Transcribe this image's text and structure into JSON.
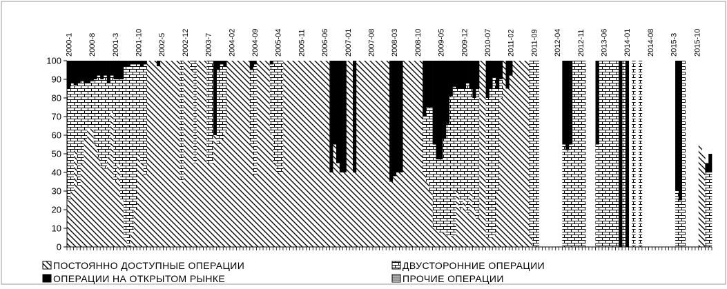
{
  "chart_data": {
    "type": "area",
    "stacked": true,
    "percent_stacked": true,
    "ylim": [
      0,
      100
    ],
    "yticks": [
      0,
      10,
      20,
      30,
      40,
      50,
      60,
      70,
      80,
      90,
      100
    ],
    "grid": false,
    "legend_position": "bottom",
    "x_labels": [
      "2000-1",
      "2000-8",
      "2001-3",
      "2001-10",
      "2002-5",
      "2002-12",
      "2003-7",
      "2004-02",
      "2004-09",
      "2005-04",
      "2005-11",
      "2006-06",
      "2007-01",
      "2007-08",
      "2008-03",
      "2008-10",
      "2009-05",
      "2009-12",
      "2010-07",
      "2011-02",
      "2011-09",
      "2012-04",
      "2012-11",
      "2013-06",
      "2014-01",
      "2014-08",
      "2015-3",
      "2015-10"
    ],
    "x_label_months": [
      0,
      7,
      14,
      21,
      28,
      35,
      42,
      49,
      56,
      63,
      70,
      77,
      84,
      91,
      98,
      105,
      112,
      119,
      126,
      133,
      140,
      147,
      154,
      161,
      168,
      175,
      182,
      189
    ],
    "months_total": 194,
    "series": [
      {
        "name": "ПОСТОЯННО ДОСТУПНЫЕ ОПЕРАЦИИ",
        "pattern": "diagonal",
        "values": [
          25,
          30,
          52,
          33,
          45,
          58,
          63,
          64,
          55,
          48,
          43,
          42,
          48,
          72,
          35,
          45,
          25,
          5,
          0,
          8,
          20,
          50,
          45,
          38,
          100,
          100,
          100,
          97,
          100,
          100,
          100,
          100,
          100,
          100,
          35,
          100,
          100,
          95,
          45,
          100,
          100,
          100,
          45,
          45,
          60,
          55,
          58,
          62,
          100,
          100,
          100,
          100,
          100,
          100,
          100,
          55,
          38,
          100,
          100,
          100,
          100,
          60,
          45,
          40,
          40,
          100,
          100,
          100,
          100,
          100,
          100,
          100,
          100,
          100,
          100,
          100,
          100,
          100,
          100,
          40,
          55,
          45,
          40,
          40,
          100,
          100,
          40,
          100,
          100,
          100,
          100,
          100,
          100,
          100,
          100,
          100,
          100,
          35,
          38,
          40,
          40,
          100,
          100,
          100,
          100,
          100,
          100,
          40,
          35,
          30,
          10,
          9,
          7,
          8,
          6,
          6,
          6,
          30,
          20,
          25,
          18,
          30,
          20,
          15,
          100,
          100,
          5,
          5,
          6,
          30,
          80,
          100,
          85,
          92,
          100,
          100,
          100,
          100,
          100,
          5,
          0,
          0,
          0,
          0,
          0,
          0,
          0,
          0,
          0,
          0,
          0,
          0,
          0,
          0,
          0,
          0,
          0,
          0,
          0,
          0,
          0,
          0,
          0,
          0,
          0,
          0,
          0,
          0,
          0,
          0,
          0,
          0,
          0,
          0,
          0,
          0,
          0,
          0,
          0,
          0,
          0,
          0,
          0,
          0,
          0,
          0,
          0,
          0,
          0,
          0,
          55,
          50,
          0
        ]
      },
      {
        "name": "ДВУСТОРОННИЕ ОПЕРАЦИИ",
        "pattern": "brick",
        "values": [
          60,
          58,
          35,
          55,
          44,
          30,
          25,
          25,
          35,
          44,
          47,
          50,
          40,
          20,
          55,
          45,
          65,
          92,
          97,
          90,
          78,
          48,
          52,
          60,
          0,
          0,
          0,
          0,
          0,
          0,
          0,
          0,
          0,
          0,
          65,
          0,
          0,
          5,
          55,
          0,
          0,
          0,
          55,
          55,
          0,
          40,
          40,
          35,
          0,
          0,
          0,
          0,
          0,
          0,
          0,
          40,
          60,
          0,
          0,
          0,
          0,
          38,
          55,
          60,
          60,
          0,
          0,
          0,
          0,
          0,
          0,
          0,
          0,
          0,
          0,
          0,
          0,
          0,
          0,
          0,
          0,
          0,
          0,
          0,
          0,
          0,
          0,
          0,
          0,
          0,
          0,
          0,
          0,
          0,
          0,
          0,
          0,
          0,
          0,
          0,
          0,
          0,
          0,
          0,
          0,
          0,
          0,
          30,
          40,
          45,
          45,
          38,
          40,
          50,
          60,
          75,
          80,
          55,
          65,
          60,
          70,
          55,
          60,
          70,
          0,
          0,
          75,
          80,
          85,
          55,
          10,
          0,
          0,
          0,
          0,
          0,
          0,
          0,
          0,
          95,
          100,
          100,
          0,
          0,
          0,
          0,
          0,
          0,
          0,
          55,
          52,
          55,
          100,
          100,
          100,
          100,
          0,
          0,
          0,
          55,
          100,
          100,
          100,
          100,
          100,
          100,
          0,
          100,
          0,
          0,
          100,
          0,
          100,
          0,
          0,
          0,
          0,
          0,
          0,
          0,
          0,
          0,
          0,
          30,
          25,
          100,
          0,
          0,
          0,
          0,
          0,
          0,
          40,
          40,
          100
        ]
      },
      {
        "name": "ОПЕРАЦИИ НА ОТКРЫТОМ РЫНКЕ",
        "pattern": "solid",
        "values": [
          15,
          12,
          13,
          12,
          11,
          12,
          12,
          11,
          10,
          8,
          10,
          8,
          12,
          8,
          10,
          10,
          10,
          3,
          3,
          2,
          2,
          2,
          3,
          2,
          0,
          0,
          0,
          3,
          0,
          0,
          0,
          0,
          0,
          0,
          0,
          0,
          0,
          0,
          0,
          0,
          0,
          0,
          0,
          0,
          40,
          5,
          2,
          3,
          0,
          0,
          0,
          0,
          0,
          0,
          0,
          5,
          2,
          0,
          0,
          0,
          0,
          2,
          0,
          0,
          0,
          0,
          0,
          0,
          0,
          0,
          0,
          0,
          0,
          0,
          0,
          0,
          0,
          0,
          0,
          60,
          45,
          55,
          60,
          60,
          0,
          0,
          60,
          0,
          0,
          0,
          0,
          0,
          0,
          0,
          0,
          0,
          0,
          65,
          62,
          60,
          60,
          0,
          0,
          0,
          0,
          0,
          0,
          30,
          25,
          25,
          45,
          53,
          53,
          42,
          34,
          19,
          14,
          15,
          15,
          15,
          12,
          15,
          20,
          15,
          0,
          0,
          20,
          15,
          9,
          15,
          10,
          0,
          15,
          8,
          0,
          0,
          0,
          0,
          0,
          0,
          0,
          0,
          0,
          0,
          0,
          0,
          0,
          0,
          0,
          45,
          48,
          45,
          0,
          0,
          0,
          0,
          0,
          0,
          0,
          45,
          0,
          0,
          0,
          0,
          0,
          0,
          100,
          0,
          100,
          0,
          0,
          0,
          0,
          0,
          0,
          0,
          0,
          0,
          0,
          0,
          0,
          0,
          0,
          70,
          75,
          0,
          0,
          0,
          0,
          0,
          0,
          0,
          5,
          10,
          0
        ]
      },
      {
        "name": "ПРОЧИЕ ОПЕРАЦИИ",
        "pattern": "horizontal",
        "values": [
          0,
          0,
          0,
          0,
          0,
          0,
          0,
          0,
          0,
          0,
          0,
          0,
          0,
          0,
          0,
          0,
          0,
          0,
          0,
          0,
          0,
          0,
          0,
          0,
          0,
          0,
          0,
          0,
          0,
          0,
          0,
          0,
          0,
          0,
          0,
          0,
          0,
          0,
          0,
          0,
          0,
          0,
          0,
          0,
          0,
          0,
          0,
          0,
          0,
          0,
          0,
          0,
          0,
          0,
          0,
          0,
          0,
          0,
          0,
          0,
          0,
          0,
          0,
          0,
          0,
          0,
          0,
          0,
          0,
          0,
          0,
          0,
          0,
          0,
          0,
          0,
          0,
          0,
          0,
          0,
          0,
          0,
          0,
          0,
          0,
          0,
          0,
          0,
          0,
          0,
          0,
          0,
          0,
          0,
          0,
          0,
          0,
          0,
          0,
          0,
          0,
          0,
          0,
          0,
          0,
          0,
          0,
          0,
          0,
          0,
          0,
          0,
          0,
          0,
          0,
          0,
          0,
          0,
          0,
          0,
          0,
          0,
          0,
          0,
          0,
          0,
          0,
          0,
          0,
          0,
          0,
          0,
          0,
          0,
          0,
          0,
          0,
          0,
          0,
          0,
          0,
          0,
          0,
          0,
          0,
          0,
          0,
          0,
          0,
          0,
          0,
          0,
          0,
          0,
          0,
          0,
          0,
          0,
          0,
          0,
          0,
          0,
          0,
          0,
          0,
          0,
          0,
          0,
          0,
          0,
          0,
          0,
          0,
          0,
          0,
          0,
          0,
          0,
          0,
          0,
          0,
          0,
          0,
          0,
          0,
          0,
          0,
          0,
          0,
          0,
          0,
          0,
          0,
          0,
          0
        ]
      }
    ]
  }
}
